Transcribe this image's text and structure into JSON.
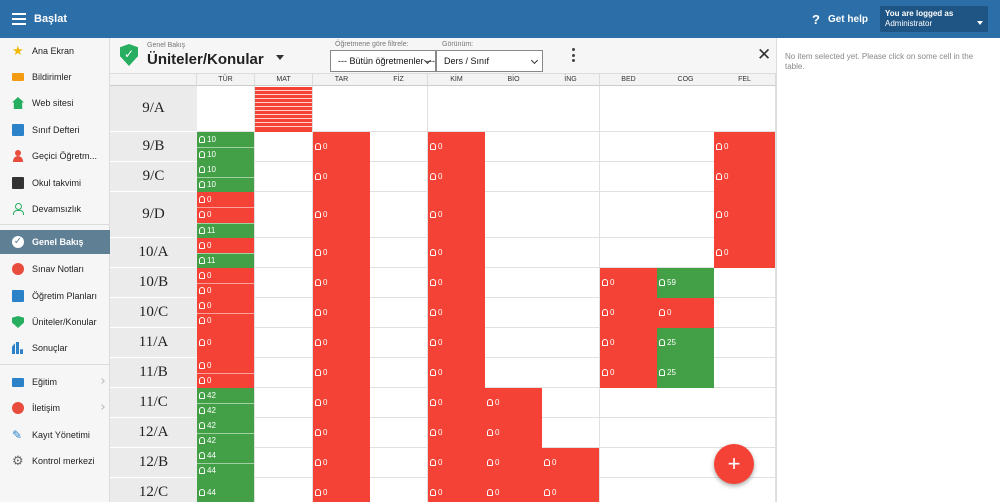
{
  "app": {
    "title": "Başlat"
  },
  "topbar": {
    "help_label": "Get help",
    "user_line1": "You are logged as",
    "user_line2": "Administrator"
  },
  "sidebar": {
    "items": [
      {
        "label": "Ana Ekran",
        "icon": "star-icon"
      },
      {
        "label": "Bildirimler",
        "icon": "mail-icon"
      },
      {
        "label": "Web sitesi",
        "icon": "home-icon"
      },
      {
        "label": "Sınıf Defteri",
        "icon": "book-icon"
      },
      {
        "label": "Geçici Öğretm...",
        "icon": "user-icon"
      },
      {
        "label": "Okul takvimi",
        "icon": "calendar-icon"
      },
      {
        "label": "Devamsızlık",
        "icon": "person-icon"
      },
      {
        "label": "Genel Bakış",
        "icon": "check-icon",
        "active": true
      },
      {
        "label": "Sınav Notları",
        "icon": "grade-icon"
      },
      {
        "label": "Öğretim Planları",
        "icon": "plan-icon"
      },
      {
        "label": "Üniteler/Konular",
        "icon": "shield-icon"
      },
      {
        "label": "Sonuçlar",
        "icon": "bars-icon"
      },
      {
        "label": "Eğitim",
        "icon": "education-icon",
        "chevron": true
      },
      {
        "label": "İletişim",
        "icon": "chat-icon",
        "chevron": true
      },
      {
        "label": "Kayıt Yönetimi",
        "icon": "pen-icon"
      },
      {
        "label": "Kontrol merkezi",
        "icon": "gear-icon"
      }
    ]
  },
  "header": {
    "subtitle": "Genel Bakış",
    "title": "Üniteler/Konular",
    "filter_label": "Öğretmene göre filtrele:",
    "filter_value": "--- Bütün öğretmenler ---",
    "view_label": "Görünüm:",
    "view_value": "Ders / Sınıf"
  },
  "columns": [
    "TÜR",
    "MAT",
    "TAR",
    "FİZ",
    "KİM",
    "BİO",
    "İNG",
    "BED",
    "COG",
    "FEL"
  ],
  "rows": [
    {
      "label": "9/A",
      "cells": [
        "",
        "mini",
        "",
        "",
        "",
        "",
        "",
        "",
        "",
        ""
      ]
    },
    {
      "label": "9/B",
      "cells": [
        [
          "g:10",
          "g:10"
        ],
        "",
        [
          "r:0"
        ],
        "",
        [
          "r:0"
        ],
        "",
        "",
        "",
        "",
        [
          "r:0"
        ]
      ]
    },
    {
      "label": "9/C",
      "cells": [
        [
          "g:10",
          "g:10"
        ],
        "",
        [
          "r:0"
        ],
        "",
        [
          "r:0"
        ],
        "",
        "",
        "",
        "",
        [
          "r:0"
        ]
      ]
    },
    {
      "label": "9/D",
      "cells": [
        [
          "r:0",
          "r:0",
          "g:11"
        ],
        "",
        [
          "r:0"
        ],
        "",
        [
          "r:0"
        ],
        "",
        "",
        "",
        "",
        [
          "r:0"
        ]
      ]
    },
    {
      "label": "10/A",
      "cells": [
        [
          "r:0",
          "g:11"
        ],
        "",
        [
          "r:0"
        ],
        "",
        [
          "r:0"
        ],
        "",
        "",
        "",
        "",
        [
          "r:0"
        ]
      ]
    },
    {
      "label": "10/B",
      "cells": [
        [
          "r:0",
          "r:0"
        ],
        "",
        [
          "r:0"
        ],
        "",
        [
          "r:0"
        ],
        "",
        "",
        [
          "r:0"
        ],
        [
          "g:59"
        ],
        ""
      ]
    },
    {
      "label": "10/C",
      "cells": [
        [
          "r:0",
          "r:0"
        ],
        "",
        [
          "r:0"
        ],
        "",
        [
          "r:0"
        ],
        "",
        "",
        [
          "r:0"
        ],
        [
          "r:0"
        ],
        ""
      ]
    },
    {
      "label": "11/A",
      "cells": [
        [
          "r:0"
        ],
        "",
        [
          "r:0"
        ],
        "",
        [
          "r:0"
        ],
        "",
        "",
        [
          "r:0"
        ],
        [
          "g:25"
        ],
        ""
      ]
    },
    {
      "label": "11/B",
      "cells": [
        [
          "r:0",
          "r:0"
        ],
        "",
        [
          "r:0"
        ],
        "",
        [
          "r:0"
        ],
        "",
        "",
        [
          "r:0"
        ],
        [
          "g:25"
        ],
        ""
      ]
    },
    {
      "label": "11/C",
      "cells": [
        [
          "g:42",
          "g:42"
        ],
        "",
        [
          "r:0"
        ],
        "",
        [
          "r:0"
        ],
        [
          "r:0"
        ],
        "",
        "",
        "",
        ""
      ]
    },
    {
      "label": "12/A",
      "cells": [
        [
          "g:42",
          "g:42"
        ],
        "",
        [
          "r:0"
        ],
        "",
        [
          "r:0"
        ],
        [
          "r:0"
        ],
        "",
        "",
        "",
        ""
      ]
    },
    {
      "label": "12/B",
      "cells": [
        [
          "g:44",
          "g:44"
        ],
        "",
        [
          "r:0"
        ],
        "",
        [
          "r:0"
        ],
        [
          "r:0"
        ],
        [
          "r:0"
        ],
        "",
        "",
        ""
      ]
    },
    {
      "label": "12/C",
      "cells": [
        [
          "g:44"
        ],
        "",
        [
          "r:0"
        ],
        "",
        [
          "r:0"
        ],
        [
          "r:0"
        ],
        [
          "r:0"
        ],
        "",
        "",
        ""
      ]
    }
  ],
  "fab": {
    "label": "+"
  },
  "right_panel": {
    "message": "No item selected yet. Please click on some cell in the table."
  },
  "colors": {
    "red": "#f44336",
    "green": "#43a047",
    "topbar": "#2c6fa8",
    "active": "#5f7f95"
  }
}
